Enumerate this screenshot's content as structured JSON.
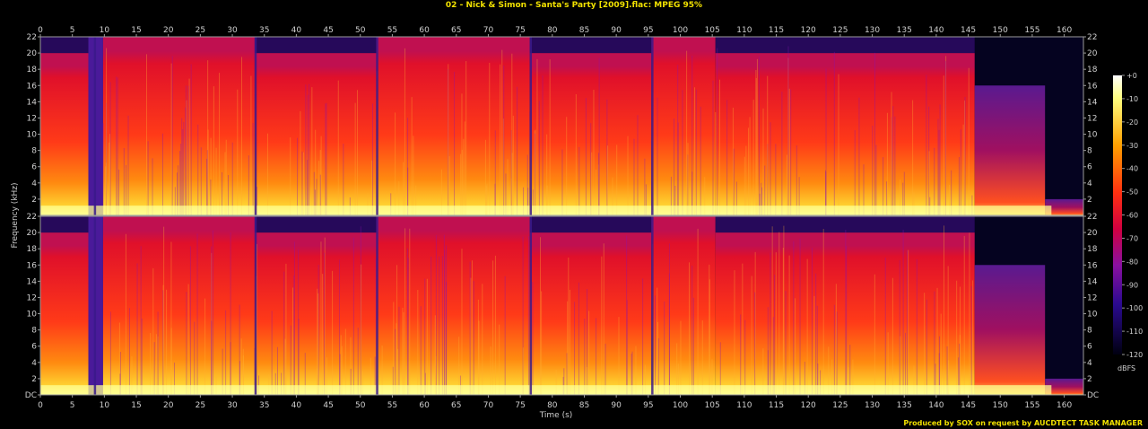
{
  "title": "02 - Nick & Simon - Santa's Party [2009].flac: MPEG 95%",
  "footer": "Produced by SOX on request by AUCDTECT TASK MANAGER",
  "chart_data": {
    "type": "heatmap",
    "title": "02 - Nick & Simon - Santa's Party [2009].flac: MPEG 95%",
    "xlabel": "Time (s)",
    "ylabel": "Frequency (kHz)",
    "xlim": [
      0,
      163
    ],
    "ylim": [
      0,
      22
    ],
    "x_ticks": [
      "0",
      "5",
      "10",
      "15",
      "20",
      "25",
      "30",
      "35",
      "40",
      "45",
      "50",
      "55",
      "60",
      "65",
      "70",
      "75",
      "80",
      "85",
      "90",
      "95",
      "100",
      "105",
      "110",
      "115",
      "120",
      "125",
      "130",
      "135",
      "140",
      "145",
      "150",
      "155",
      "160"
    ],
    "y_ticks_top": [
      "22",
      "20",
      "18",
      "16",
      "14",
      "12",
      "10",
      "8",
      "6",
      "4",
      "2"
    ],
    "y_ticks_bottom": [
      "22",
      "20",
      "18",
      "16",
      "14",
      "12",
      "10",
      "8",
      "6",
      "4",
      "2",
      "DC"
    ],
    "channels": 2,
    "colorbar": {
      "label": "dBFS",
      "ticks": [
        "+0",
        "-10",
        "-20",
        "-30",
        "-40",
        "-50",
        "-60",
        "-70",
        "-80",
        "-90",
        "-100",
        "-110",
        "-120"
      ],
      "range": [
        -120,
        0
      ]
    },
    "sections": [
      {
        "start": 0,
        "end": 7.5,
        "cutoff_khz": 20,
        "level": "hot"
      },
      {
        "start": 7.5,
        "end": 9.8,
        "cutoff_khz": 22,
        "level": "quiet"
      },
      {
        "start": 9.8,
        "end": 33.5,
        "cutoff_khz": 22,
        "level": "hot"
      },
      {
        "start": 33.5,
        "end": 52.5,
        "cutoff_khz": 20,
        "level": "hot"
      },
      {
        "start": 52.5,
        "end": 76.5,
        "cutoff_khz": 22,
        "level": "hot"
      },
      {
        "start": 76.5,
        "end": 95.5,
        "cutoff_khz": 20,
        "level": "hot"
      },
      {
        "start": 95.5,
        "end": 105.5,
        "cutoff_khz": 22,
        "level": "hot"
      },
      {
        "start": 105.5,
        "end": 146,
        "cutoff_khz": 20,
        "level": "hot"
      },
      {
        "start": 146,
        "end": 157,
        "cutoff_khz": 16,
        "level": "fading"
      },
      {
        "start": 157,
        "end": 163,
        "cutoff_khz": 2,
        "level": "silent"
      }
    ],
    "colors": {
      "hot": "#ff2a10",
      "warm": "#ffb000",
      "cool": "#7a0a9a",
      "cold": "#0a0640"
    }
  }
}
